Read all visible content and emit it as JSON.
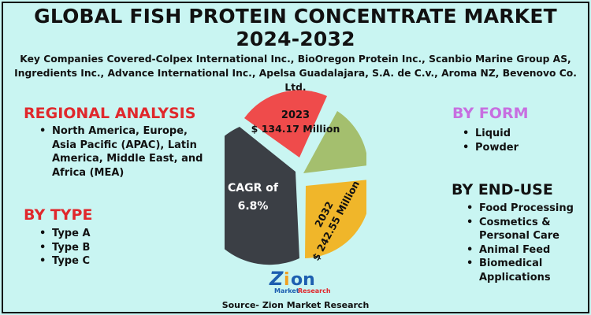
{
  "title_line1": "GLOBAL FISH PROTEIN CONCENTRATE MARKET",
  "title_line2": "2024-2032",
  "companies_line1": "Key Companies Covered-Colpex International Inc., BioOregon Protein Inc., Scanbio Marine Group AS,",
  "companies_line2": "Ingredients Inc., Advance International Inc., Apelsa Guadalajara, S.A. de C.v., Aroma NZ, Bevenovo Co. Ltd.",
  "regional": {
    "heading": "REGIONAL ANALYSIS",
    "items": [
      "North America, Europe, Asia Pacific (APAC), Latin America, Middle East, and Africa (MEA)"
    ]
  },
  "type": {
    "heading": "BY  TYPE",
    "items": [
      "Type A",
      "Type B",
      "Type C"
    ]
  },
  "form": {
    "heading": "BY FORM",
    "items": [
      "Liquid",
      "Powder"
    ]
  },
  "enduse": {
    "heading": "BY END-USE",
    "items": [
      "Food Processing",
      "Cosmetics & Personal Care",
      "Animal Feed",
      "Biomedical Applications"
    ]
  },
  "pie": {
    "year2023": "2023",
    "value2023": "$ 134.17 Million",
    "cagr_line1": "CAGR of",
    "cagr_line2": "6.8%",
    "year2032": "2032",
    "value2032": "$ 242.55 Million",
    "colors": {
      "red": "#ef4b4b",
      "dark": "#3b3f45",
      "green": "#a4bf6e",
      "yellow": "#f0b62a"
    }
  },
  "logo": {
    "word": "Zion",
    "sub": "Market Research"
  },
  "source": "Source- Zion Market Research"
}
